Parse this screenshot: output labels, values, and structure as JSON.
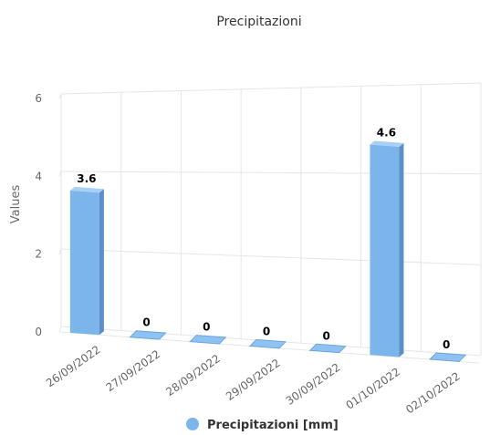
{
  "chart_data": {
    "type": "bar",
    "title": "Precipitazioni",
    "ylabel": "Values",
    "xlabel": "",
    "categories": [
      "26/09/2022",
      "27/09/2022",
      "28/09/2022",
      "29/09/2022",
      "30/09/2022",
      "01/10/2022",
      "02/10/2022"
    ],
    "series": [
      {
        "name": "Precipitazioni [mm]",
        "values": [
          3.6,
          0,
          0,
          0,
          0,
          4.6,
          0
        ],
        "color": "#7cb5ec"
      }
    ],
    "ylim": [
      0,
      6
    ],
    "yticks": [
      0,
      2,
      4,
      6
    ],
    "grid": true,
    "style": "3d-column",
    "legend": "bottom"
  }
}
